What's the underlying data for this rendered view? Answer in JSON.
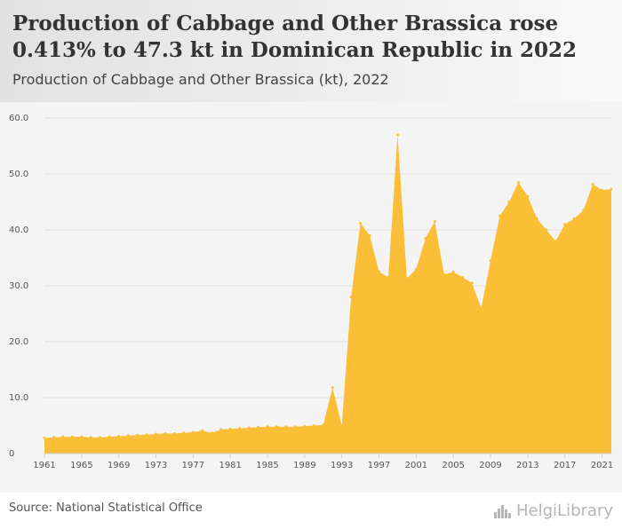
{
  "header": {
    "title": "Production of Cabbage and Other Brassica rose 0.413% to 47.3 kt in Dominican Republic in 2022",
    "subtitle": "Production of Cabbage and Other Brassica (kt), 2022"
  },
  "footer": {
    "source": "Source: National Statistical Office",
    "brand": "HelgiLibrary"
  },
  "colors": {
    "area": "#fbbf37",
    "grid": "#e0e0e0",
    "axis": "#cccccc"
  },
  "chart_data": {
    "type": "area",
    "ylim": [
      0,
      60
    ],
    "y_ticks": [
      "0",
      "10.0",
      "20.0",
      "30.0",
      "40.0",
      "50.0",
      "60.0"
    ],
    "x_ticks": [
      "1961",
      "1965",
      "1969",
      "1973",
      "1977",
      "1981",
      "1985",
      "1989",
      "1993",
      "1997",
      "2001",
      "2005",
      "2009",
      "2013",
      "2017",
      "2021"
    ],
    "grid": "horizontal",
    "x": [
      1961,
      1962,
      1963,
      1964,
      1965,
      1966,
      1967,
      1968,
      1969,
      1970,
      1971,
      1972,
      1973,
      1974,
      1975,
      1976,
      1977,
      1978,
      1979,
      1980,
      1981,
      1982,
      1983,
      1984,
      1985,
      1986,
      1987,
      1988,
      1989,
      1990,
      1991,
      1992,
      1993,
      1994,
      1995,
      1996,
      1997,
      1998,
      1999,
      2000,
      2001,
      2002,
      2003,
      2004,
      2005,
      2006,
      2007,
      2008,
      2009,
      2010,
      2011,
      2012,
      2013,
      2014,
      2015,
      2016,
      2017,
      2018,
      2019,
      2020,
      2021,
      2022
    ],
    "values": [
      2.8,
      2.9,
      3.0,
      3.0,
      3.0,
      2.9,
      2.9,
      3.0,
      3.1,
      3.2,
      3.3,
      3.4,
      3.5,
      3.6,
      3.6,
      3.7,
      3.8,
      4.1,
      3.7,
      4.3,
      4.4,
      4.5,
      4.6,
      4.7,
      4.8,
      4.8,
      4.8,
      4.8,
      4.9,
      5.0,
      5.1,
      11.8,
      5.0,
      28.0,
      41.2,
      39.0,
      32.5,
      31.5,
      57.0,
      31.3,
      33.0,
      38.5,
      41.5,
      32.0,
      32.5,
      31.5,
      30.5,
      26.0,
      34.5,
      42.5,
      45.0,
      48.5,
      46.0,
      42.0,
      40.0,
      38.0,
      41.0,
      42.0,
      43.5,
      48.2,
      47.1,
      47.3
    ]
  }
}
